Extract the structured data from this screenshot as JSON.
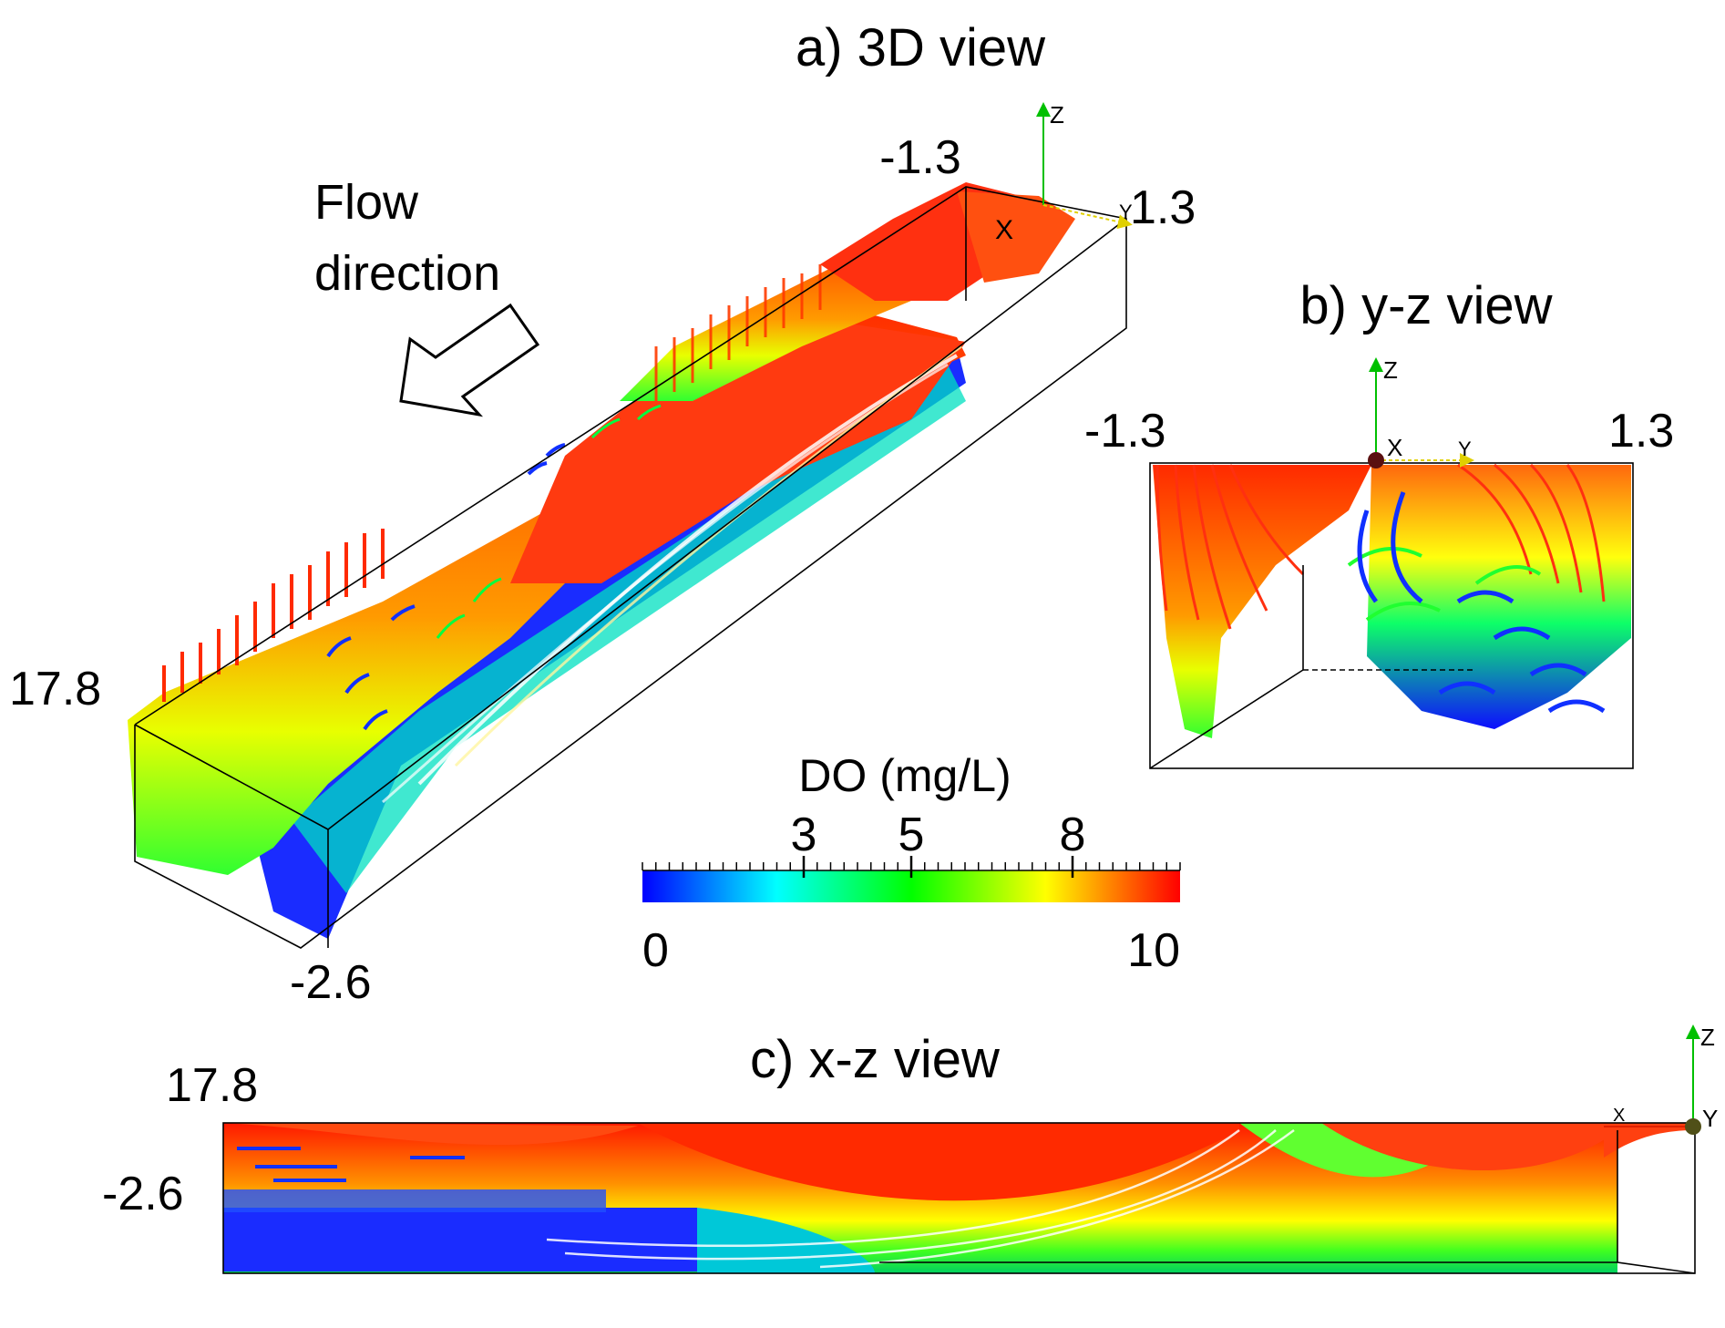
{
  "panels": {
    "a": {
      "title": "a) 3D view",
      "labels": {
        "y_left": "-1.3",
        "y_right": "1.3",
        "x_top": "17.8",
        "z_bottom": "-2.6"
      },
      "flow_label": [
        "Flow",
        "direction"
      ],
      "axes": {
        "x": "X",
        "y": "Y",
        "z": "Z"
      }
    },
    "b": {
      "title": "b) y-z view",
      "labels": {
        "y_left": "-1.3",
        "y_right": "1.3"
      },
      "axes": {
        "x": "X",
        "y": "Y",
        "z": "Z"
      }
    },
    "c": {
      "title": "c) x-z view",
      "labels": {
        "x_top": "17.8",
        "z_bottom": "-2.6"
      },
      "axes": {
        "x": "X",
        "y": "Y",
        "z": "Z"
      }
    }
  },
  "colorbar": {
    "title": "DO (mg/L)",
    "min": 0,
    "max": 10,
    "ticks_top": [
      "3",
      "5",
      "8"
    ],
    "tick_values_top": [
      3,
      5,
      8
    ],
    "end_labels": [
      "0",
      "10"
    ],
    "colors": [
      "#0000ff",
      "#00ffff",
      "#00ff00",
      "#ffff00",
      "#ff0000"
    ]
  }
}
